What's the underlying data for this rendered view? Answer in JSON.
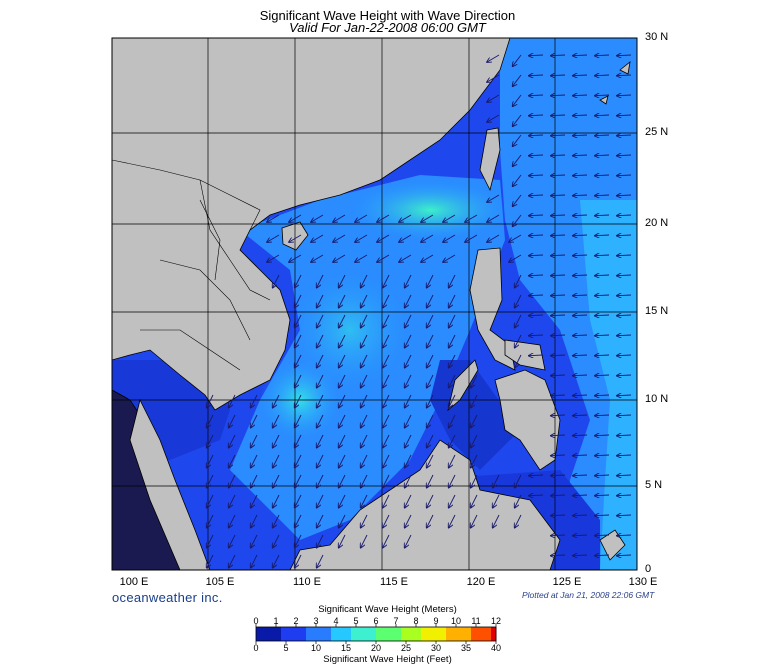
{
  "title": "Significant Wave Height with Wave Direction",
  "subtitle": "Valid For Jan-22-2008 06:00 GMT",
  "lat_labels": [
    "30 N",
    "25 N",
    "20 N",
    "15 N",
    "10 N",
    "5 N",
    "0"
  ],
  "lon_labels": [
    "100 E",
    "105 E",
    "110 E",
    "115 E",
    "120 E",
    "125 E",
    "130 E"
  ],
  "brand": "oceanweather inc.",
  "plotted_text": "Plotted at Jan 21, 2008 22:06 GMT",
  "colorbar": {
    "title_meters": "Significant Wave Height (Meters)",
    "title_feet": "Significant Wave Height (Feet)",
    "meters_ticks": [
      "0",
      "1",
      "2",
      "3",
      "4",
      "5",
      "6",
      "7",
      "8",
      "9",
      "10",
      "11",
      "12"
    ],
    "feet_ticks": [
      "0",
      "5",
      "10",
      "15",
      "20",
      "25",
      "30",
      "35",
      "40"
    ],
    "colors": [
      "#0a1aa8",
      "#1e3cf0",
      "#2a7cff",
      "#25c8ff",
      "#3cf0d0",
      "#5cff70",
      "#a8ff20",
      "#f0f000",
      "#ffb000",
      "#ff5000",
      "#e00000"
    ]
  },
  "colors": {
    "land": "#c0c0c0",
    "ocean_deep": "#1a3fe8",
    "ocean_mid": "#2a8cff",
    "ocean_high": "#30d8f0",
    "arrow": "#1a1a6a",
    "grid": "#000000"
  }
}
